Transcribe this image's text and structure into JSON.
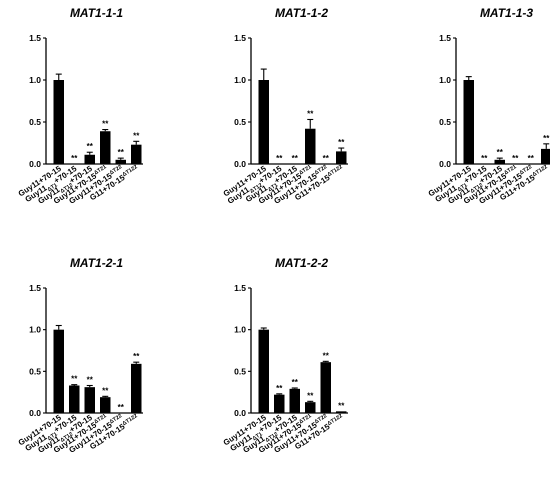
{
  "chart_data": [
    {
      "type": "bar",
      "title": "MAT1-1-1",
      "categories": [
        "Guy11+70-15",
        "Guy11ΔT1+70-15",
        "Guy11ΔT12+70-15",
        "Guy11+70-15ΔT21",
        "Guy11+70-15ΔT22",
        "G11+70-15ΔT122"
      ],
      "categories_base": [
        "Guy11+70-15",
        "Guy11",
        "Guy11",
        "Guy11+70-15",
        "Guy11+70-15",
        "G11+70-15"
      ],
      "categories_sub": [
        "",
        "ΔT1",
        "ΔT12",
        "",
        "",
        ""
      ],
      "categories_tail": [
        "",
        "+70-15",
        "+70-15",
        "",
        "",
        ""
      ],
      "categories_sup": [
        "",
        "",
        "",
        "ΔT21",
        "ΔT22",
        "ΔT122"
      ],
      "values": [
        1.0,
        0.0,
        0.11,
        0.39,
        0.05,
        0.23
      ],
      "errors": [
        0.07,
        0.0,
        0.03,
        0.02,
        0.02,
        0.04
      ],
      "significance": [
        "",
        "**",
        "**",
        "**",
        "**",
        "**"
      ],
      "ylim": [
        0,
        1.5
      ],
      "yticks": [
        "0.0",
        "0.5",
        "1.0",
        "1.5"
      ],
      "xlabel": "",
      "ylabel": ""
    },
    {
      "type": "bar",
      "title": "MAT1-1-2",
      "categories": [
        "Guy11+70-15",
        "Guy11ΔT12+70-15",
        "Guy11ΔT1+70-15",
        "Guy11+70-15ΔT21",
        "Guy11+70-15ΔT22",
        "G11+70-15ΔT122"
      ],
      "categories_base": [
        "Guy11+70-15",
        "Guy11",
        "Guy11",
        "Guy11+70-15",
        "Guy11+70-15",
        "G11+70-15"
      ],
      "categories_sub": [
        "",
        "ΔT12",
        "ΔT1",
        "",
        "",
        ""
      ],
      "categories_tail": [
        "",
        "+70-15",
        "+70-15",
        "",
        "",
        ""
      ],
      "categories_sup": [
        "",
        "",
        "",
        "ΔT21",
        "ΔT22",
        "ΔT122"
      ],
      "values": [
        1.0,
        0.0,
        0.0,
        0.42,
        0.0,
        0.15
      ],
      "errors": [
        0.13,
        0.0,
        0.0,
        0.11,
        0.0,
        0.04
      ],
      "significance": [
        "",
        "**",
        "**",
        "**",
        "**",
        "**"
      ],
      "ylim": [
        0,
        1.5
      ],
      "yticks": [
        "0.0",
        "0.5",
        "1.0",
        "1.5"
      ],
      "xlabel": "",
      "ylabel": ""
    },
    {
      "type": "bar",
      "title": "MAT1-1-3",
      "categories": [
        "Guy11+70-15",
        "Guy11ΔT1+70-15",
        "Guy11ΔT12+70-15",
        "Guy11+70-15ΔT21",
        "Guy11+70-15ΔT22",
        "G11+70-15ΔT122"
      ],
      "categories_base": [
        "Guy11+70-15",
        "Guy11",
        "Guy11",
        "Guy11+70-15",
        "Guy11+70-15",
        "G11+70-15"
      ],
      "categories_sub": [
        "",
        "ΔT1",
        "ΔT12",
        "",
        "",
        ""
      ],
      "categories_tail": [
        "",
        "+70-15",
        "+70-15",
        "",
        "",
        ""
      ],
      "categories_sup": [
        "",
        "",
        "",
        "ΔT21",
        "ΔT22",
        "ΔT122"
      ],
      "values": [
        1.0,
        0.0,
        0.05,
        0.0,
        0.0,
        0.18
      ],
      "errors": [
        0.04,
        0.0,
        0.02,
        0.0,
        0.0,
        0.06
      ],
      "significance": [
        "",
        "**",
        "**",
        "**",
        "**",
        "**"
      ],
      "ylim": [
        0,
        1.5
      ],
      "yticks": [
        "0.0",
        "0.5",
        "1.0",
        "1.5"
      ],
      "xlabel": "",
      "ylabel": ""
    },
    {
      "type": "bar",
      "title": "MAT1-2-1",
      "categories": [
        "Guy11+70-15",
        "Guy11ΔT1+70-15",
        "Guy11ΔT12+70-15",
        "Guy11+70-15ΔT21",
        "Guy11+70-15ΔT22",
        "G11+70-15ΔT122"
      ],
      "categories_base": [
        "Guy11+70-15",
        "Guy11",
        "Guy11",
        "Guy11+70-15",
        "Guy11+70-15",
        "G11+70-15"
      ],
      "categories_sub": [
        "",
        "ΔT1",
        "ΔT12",
        "",
        "",
        ""
      ],
      "categories_tail": [
        "",
        "+70-15",
        "+70-15",
        "",
        "",
        ""
      ],
      "categories_sup": [
        "",
        "",
        "",
        "ΔT21",
        "ΔT22",
        "ΔT122"
      ],
      "values": [
        1.0,
        0.33,
        0.31,
        0.19,
        0.0,
        0.59
      ],
      "errors": [
        0.05,
        0.01,
        0.02,
        0.01,
        0.0,
        0.02
      ],
      "significance": [
        "",
        "**",
        "**",
        "**",
        "**",
        "**"
      ],
      "ylim": [
        0,
        1.5
      ],
      "yticks": [
        "0.0",
        "0.5",
        "1.0",
        "1.5"
      ],
      "xlabel": "",
      "ylabel": ""
    },
    {
      "type": "bar",
      "title": "MAT1-2-2",
      "categories": [
        "Guy11+70-15",
        "Guy11ΔT1+70-15",
        "Guy11ΔT12+70-15",
        "Guy11+70-15ΔT21",
        "Guy11+70-15ΔT22",
        "G11+70-15ΔT122"
      ],
      "categories_base": [
        "Guy11+70-15",
        "Guy11",
        "Guy11",
        "Guy11+70-15",
        "Guy11+70-15",
        "G11+70-15"
      ],
      "categories_sub": [
        "",
        "ΔT1",
        "ΔT12",
        "",
        "",
        ""
      ],
      "categories_tail": [
        "",
        "+70-15",
        "+70-15",
        "",
        "",
        ""
      ],
      "categories_sup": [
        "",
        "",
        "",
        "ΔT21",
        "ΔT22",
        "ΔT122"
      ],
      "values": [
        1.0,
        0.22,
        0.29,
        0.13,
        0.61,
        0.02
      ],
      "errors": [
        0.02,
        0.01,
        0.01,
        0.01,
        0.01,
        0.0
      ],
      "significance": [
        "",
        "**",
        "**",
        "**",
        "**",
        "**"
      ],
      "ylim": [
        0,
        1.5
      ],
      "yticks": [
        "0.0",
        "0.5",
        "1.0",
        "1.5"
      ],
      "xlabel": "",
      "ylabel": ""
    }
  ]
}
